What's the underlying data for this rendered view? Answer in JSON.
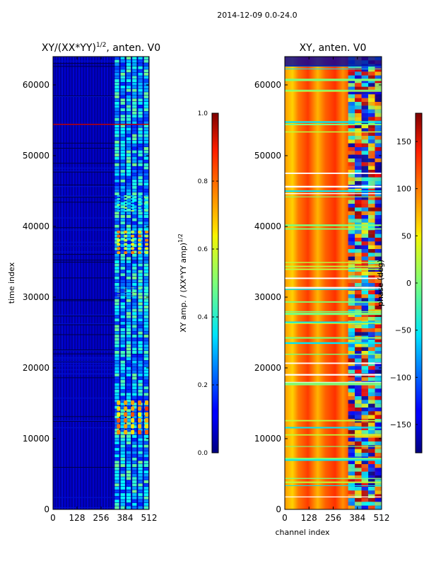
{
  "figure_title": "2014-12-09 0.0-24.0",
  "chart_data": [
    {
      "type": "heatmap",
      "title_prefix": "XY/(XX*YY)",
      "title_exponent": "1/2",
      "title_suffix": ", anten. V0",
      "xlabel": "",
      "ylabel": "time index",
      "xlim": [
        0,
        512
      ],
      "ylim": [
        0,
        64000
      ],
      "xticks": [
        0,
        128,
        256,
        384,
        512
      ],
      "yticks": [
        0,
        10000,
        20000,
        30000,
        40000,
        50000,
        60000
      ],
      "colorbar": {
        "label_prefix": "XY amp. / (XX*YY amp)",
        "label_exponent": "1/2",
        "range": [
          0.0,
          1.0
        ],
        "ticks": [
          "0.0",
          "0.2",
          "0.4",
          "0.6",
          "0.8",
          "1.0"
        ],
        "colormap": "jet"
      }
    },
    {
      "type": "heatmap",
      "title": "XY, anten. V0",
      "xlabel": "channel index",
      "ylabel": "",
      "xlim": [
        0,
        512
      ],
      "ylim": [
        0,
        64000
      ],
      "xticks": [
        0,
        128,
        256,
        384,
        512
      ],
      "yticks": [
        0,
        10000,
        20000,
        30000,
        40000,
        50000,
        60000
      ],
      "colorbar": {
        "label": "phase (deg)",
        "range": [
          -180,
          180
        ],
        "ticks": [
          "−150",
          "−100",
          "−50",
          "0",
          "50",
          "100",
          "150"
        ],
        "colormap": "jet"
      }
    }
  ]
}
